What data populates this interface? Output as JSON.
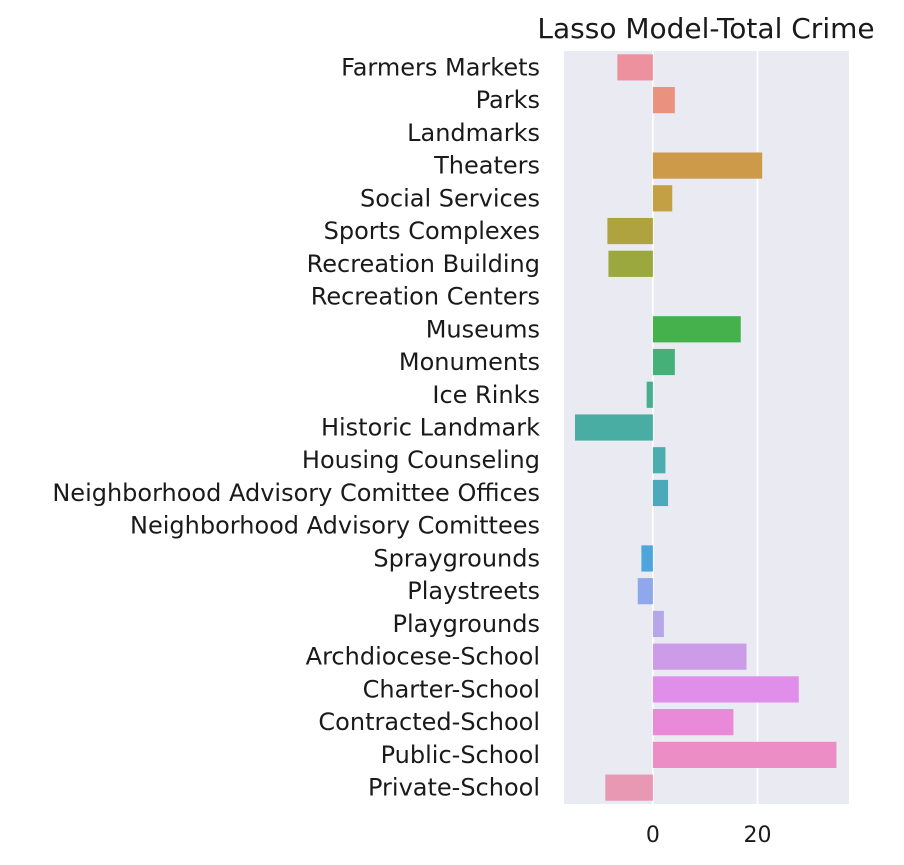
{
  "chart_data": {
    "type": "bar",
    "orientation": "horizontal",
    "title": "Lasso Model-Total Crime",
    "xlabel": "",
    "ylabel": "",
    "categories": [
      "Farmers Markets",
      "Parks",
      "Landmarks",
      "Theaters",
      "Social Services",
      "Sports Complexes",
      "Recreation Building",
      "Recreation Centers",
      "Museums",
      "Monuments",
      "Ice Rinks",
      "Historic Landmark",
      "Housing Counseling",
      "Neighborhood Advisory Comittee Offices",
      "Neighborhood Advisory Comittees",
      "Spraygrounds",
      "Playstreets",
      "Playgrounds",
      "Archdiocese-School",
      "Charter-School",
      "Contracted-School",
      "Public-School",
      "Private-School"
    ],
    "values": [
      -6.8,
      4.2,
      0,
      20.9,
      3.7,
      -8.7,
      -8.5,
      0,
      16.8,
      4.2,
      -1.2,
      -14.9,
      2.4,
      2.9,
      0,
      -2.2,
      -2.9,
      2.1,
      17.9,
      27.9,
      15.4,
      35.1,
      -9.1
    ],
    "colors": [
      "#ed919f",
      "#e9927f",
      "#dfa065",
      "#cc9a48",
      "#c3a043",
      "#aea33f",
      "#9aa83d",
      "#7bb03f",
      "#45b14d",
      "#45b179",
      "#48af8e",
      "#4aada3",
      "#4cadb1",
      "#4ca9bc",
      "#52a8d4",
      "#4ea5dc",
      "#8fa8ea",
      "#b7a6ea",
      "#cc9ce9",
      "#df8fea",
      "#e88ad7",
      "#ec8ec5",
      "#e898b2"
    ],
    "xlim": [
      -17,
      37.5
    ],
    "xticks": [
      0,
      20
    ],
    "grid": true,
    "legend": "none"
  }
}
